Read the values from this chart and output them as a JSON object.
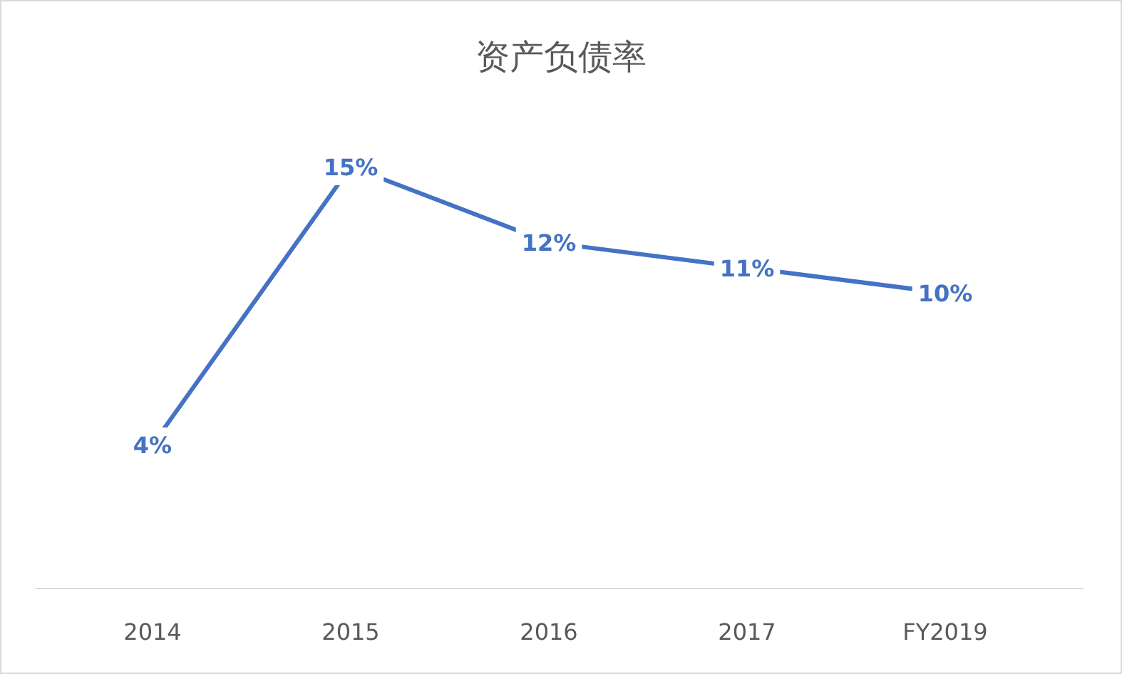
{
  "chart_data": {
    "type": "line",
    "title": "资产负债率",
    "categories": [
      "2014",
      "2015",
      "2016",
      "2017",
      "FY2019"
    ],
    "values": [
      4,
      15,
      12,
      11,
      10
    ],
    "value_labels": [
      "4%",
      "15%",
      "12%",
      "11%",
      "10%"
    ],
    "color": "#4472c4",
    "tick_labels": "x",
    "line_style": "solid"
  }
}
